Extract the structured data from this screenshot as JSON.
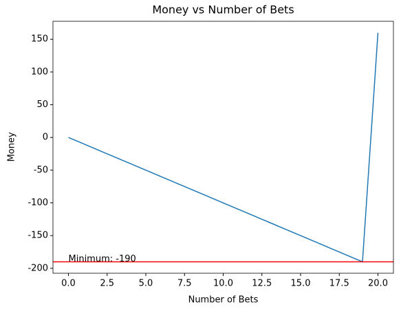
{
  "chart_data": {
    "type": "line",
    "title": "Money vs Number of Bets",
    "x_label": "Number of Bets",
    "y_label": "Money",
    "x": [
      0,
      1,
      2,
      3,
      4,
      5,
      6,
      7,
      8,
      9,
      10,
      11,
      12,
      13,
      14,
      15,
      16,
      17,
      18,
      19,
      20
    ],
    "values": [
      0,
      -10,
      -20,
      -30,
      -40,
      -50,
      -60,
      -70,
      -80,
      -90,
      -100,
      -110,
      -120,
      -130,
      -140,
      -150,
      -160,
      -170,
      -180,
      -190,
      160
    ],
    "color": "#1f77b4",
    "xlim": [
      -1,
      21
    ],
    "ylim": [
      -207.5,
      177.5
    ],
    "xticks": [
      {
        "value": 0,
        "label": "0.0"
      },
      {
        "value": 2.5,
        "label": "2.5"
      },
      {
        "value": 5,
        "label": "5.0"
      },
      {
        "value": 7.5,
        "label": "7.5"
      },
      {
        "value": 10,
        "label": "10.0"
      },
      {
        "value": 12.5,
        "label": "12.5"
      },
      {
        "value": 15,
        "label": "15.0"
      },
      {
        "value": 17.5,
        "label": "17.5"
      },
      {
        "value": 20,
        "label": "20.0"
      }
    ],
    "yticks": [
      -200,
      -150,
      -100,
      -50,
      0,
      50,
      100,
      150
    ],
    "hline": {
      "value": -190,
      "color": "red",
      "label": "Minimum: -190"
    }
  }
}
